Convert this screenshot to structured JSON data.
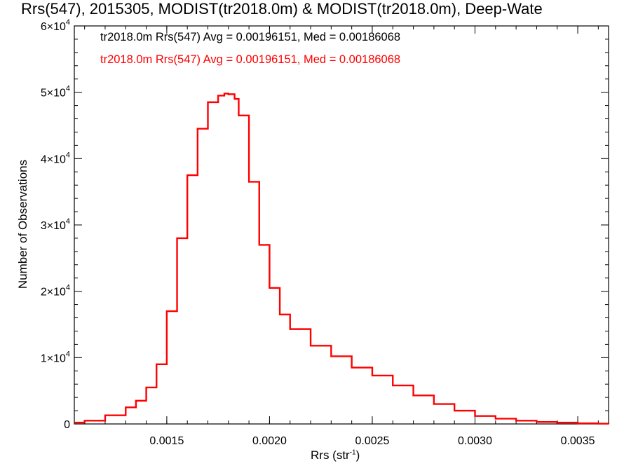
{
  "chart_data": {
    "type": "histogram",
    "title": "Rrs(547), 2015305, MODIST(tr2018.0m) & MODIST(tr2018.0m), Deep-Wate",
    "xlabel_main": "Rrs (str",
    "xlabel_sup": "-1",
    "xlabel_close": ")",
    "ylabel": "Number of Observations",
    "xlim": [
      0.00105,
      0.00365
    ],
    "ylim": [
      0,
      60000
    ],
    "x_ticks": [
      0.0015,
      0.002,
      0.0025,
      0.003,
      0.0035
    ],
    "x_tick_labels": [
      "0.0015",
      "0.0020",
      "0.0025",
      "0.0030",
      "0.0035"
    ],
    "y_ticks": [
      0,
      10000,
      20000,
      30000,
      40000,
      50000,
      60000
    ],
    "y_tick_labels": [
      {
        "mant": "0",
        "exp": ""
      },
      {
        "mant": "1×10",
        "exp": "4"
      },
      {
        "mant": "2×10",
        "exp": "4"
      },
      {
        "mant": "3×10",
        "exp": "4"
      },
      {
        "mant": "4×10",
        "exp": "4"
      },
      {
        "mant": "5×10",
        "exp": "4"
      },
      {
        "mant": "6×10",
        "exp": "4"
      }
    ],
    "legend": [
      {
        "text": "tr2018.0m Rrs(547) Avg = 0.00196151, Med = 0.00186068",
        "color": "#000000"
      },
      {
        "text": "tr2018.0m Rrs(547) Avg = 0.00196151, Med = 0.00186068",
        "color": "#ff0000"
      }
    ],
    "series": [
      {
        "color": "#ff0000",
        "x": [
          0.00105,
          0.0011,
          0.0012,
          0.0013,
          0.00135,
          0.0014,
          0.00145,
          0.0015,
          0.00155,
          0.0016,
          0.00165,
          0.0017,
          0.00175,
          0.00178,
          0.0018,
          0.00183,
          0.00185,
          0.0019,
          0.00195,
          0.002,
          0.00205,
          0.0021,
          0.0022,
          0.0023,
          0.0024,
          0.0025,
          0.0026,
          0.0027,
          0.0028,
          0.0029,
          0.003,
          0.0031,
          0.0032,
          0.0033,
          0.0034,
          0.0035,
          0.0036,
          0.00365
        ],
        "y": [
          200,
          500,
          1300,
          2500,
          3500,
          5500,
          9000,
          17000,
          28000,
          37500,
          44500,
          48500,
          49500,
          49800,
          49700,
          49000,
          46500,
          36500,
          27000,
          20500,
          16500,
          14300,
          11800,
          10200,
          8500,
          7300,
          5800,
          4300,
          3000,
          2000,
          1200,
          800,
          500,
          300,
          200,
          100,
          50,
          30
        ]
      }
    ]
  }
}
